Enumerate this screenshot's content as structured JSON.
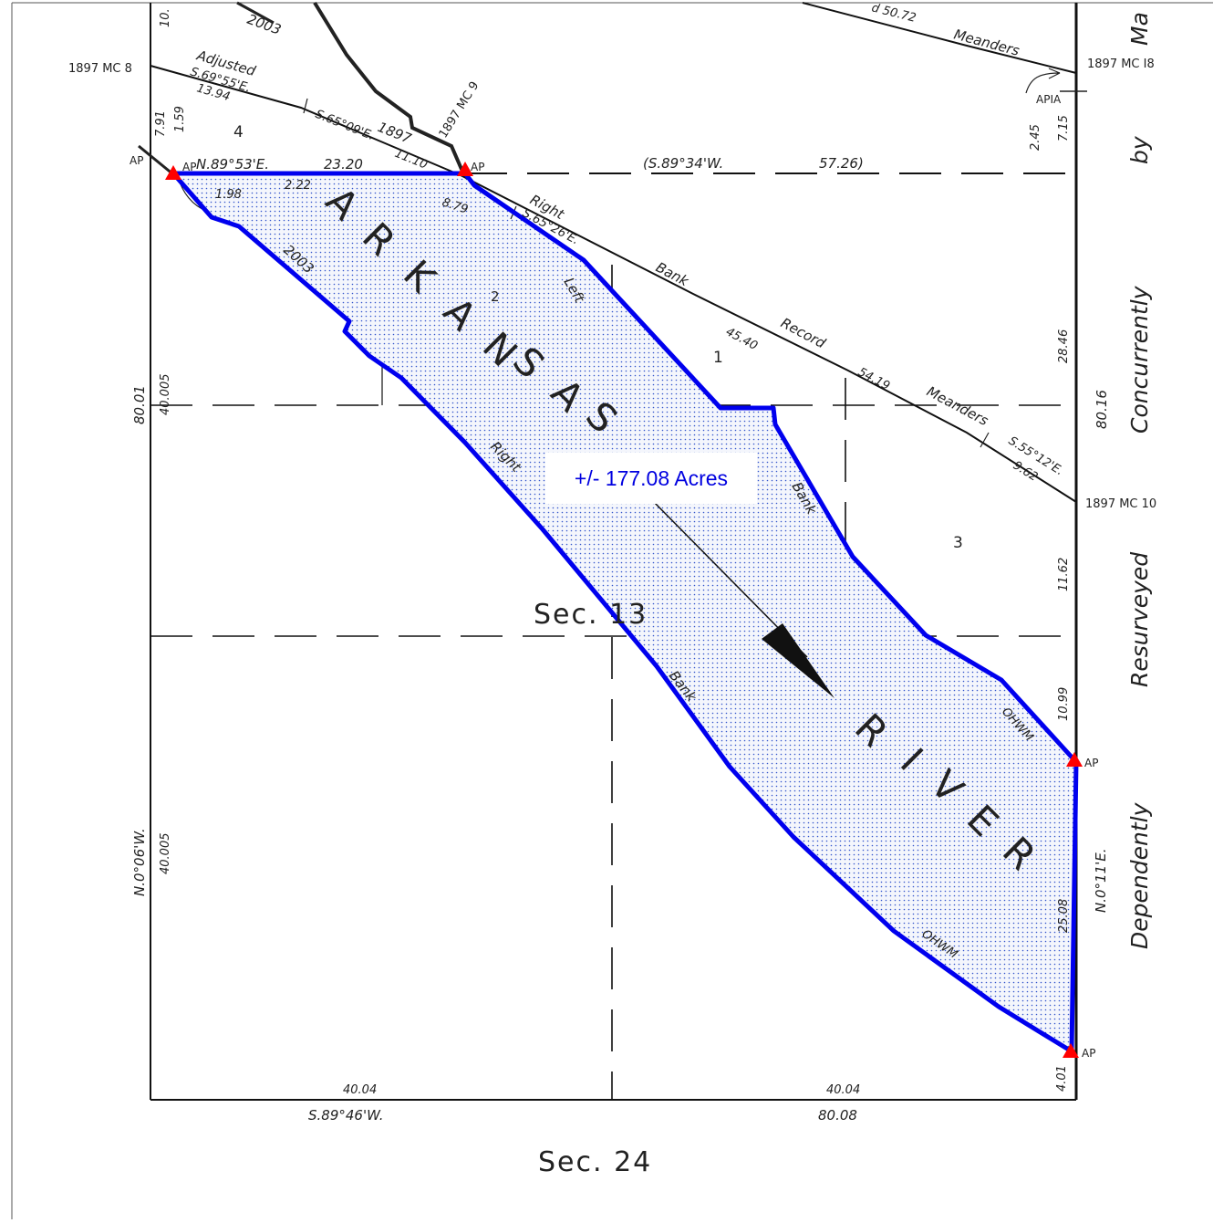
{
  "parcel": {
    "acreage": "+/- 177.08 Acres",
    "outline_color": "#0000ee",
    "fill_dot_color": "#3355cc",
    "corner_marker_color": "#ff0000"
  },
  "section_labels": {
    "main": "Sec. 13",
    "south": "Sec. 24"
  },
  "river": {
    "word1_letters": [
      "A",
      "R",
      "K",
      "A",
      "N",
      "S",
      "A",
      "S"
    ],
    "word2_letters": [
      "R",
      "I",
      "V",
      "E",
      "R"
    ]
  },
  "monuments": {
    "mc8": "1897 MC 8",
    "mc9": "1897 MC 9",
    "mc10": "1897 MC 10",
    "mc18": "1897 MC I8",
    "apia": "APIA",
    "ap": "AP"
  },
  "lot_numbers": {
    "lot1": "1",
    "lot2": "2",
    "lot3": "3",
    "lot4": "4"
  },
  "bearings": {
    "north_line": "N.89°53'E.",
    "north_dist": "23.20",
    "north_record": "(S.89°34'W.",
    "north_record_dist": "57.26)",
    "adjusted": "Adjusted",
    "adj_bearing": "S.69°55'E.",
    "adj_dist": "13.94",
    "s65_09": "S.65°09'E.",
    "dist_11_10": "11.10",
    "year_1897": "1897",
    "year_2003_top": "2003",
    "year_2003": "2003",
    "s65_26": "S.65°26'E.",
    "right_bank_upper": "Right",
    "bank_upper": "Bank",
    "record": "Record",
    "meanders_mid": "Meanders",
    "meanders_top": "Meanders",
    "s55_12": "S.55°12'E.",
    "dist_45_40": "45.40",
    "dist_54_19": "54.19",
    "dist_9_62": "9.62",
    "dist_8_79": "8.79",
    "dist_1_98": "1.98",
    "dist_2_22": "2.22",
    "dist_30_72": "d 50.72",
    "dist_7_91": "7.91",
    "dist_1_59": "1.59",
    "dist_10": "10.",
    "left": "Left",
    "bank_left": "Bank",
    "right_bank_lower": "Right",
    "bank_lower": "Bank",
    "ohwm_1": "OHWM",
    "ohwm_2": "OHWM",
    "west_total": "80.01",
    "west_a": "40.005",
    "west_b": "40.005",
    "west_bearing": "N.0°06'W.",
    "east_total": "80.16",
    "east_28_46": "28.46",
    "east_11_62": "11.62",
    "east_10_99": "10.99",
    "east_25_08": "25.08",
    "east_4_01": "4.01",
    "east_bearing": "N.0°11'E.",
    "east_2_45": "2.45",
    "east_7_15": "7.15",
    "south_a": "40.04",
    "south_b": "40.04",
    "south_total": "80.08",
    "south_bearing": "S.89°46'W."
  },
  "margin_text": {
    "dependently": "Dependently",
    "resurveyed": "Resurveyed",
    "concurrently": "Concurrently",
    "by": "by",
    "ma": "Ma"
  }
}
